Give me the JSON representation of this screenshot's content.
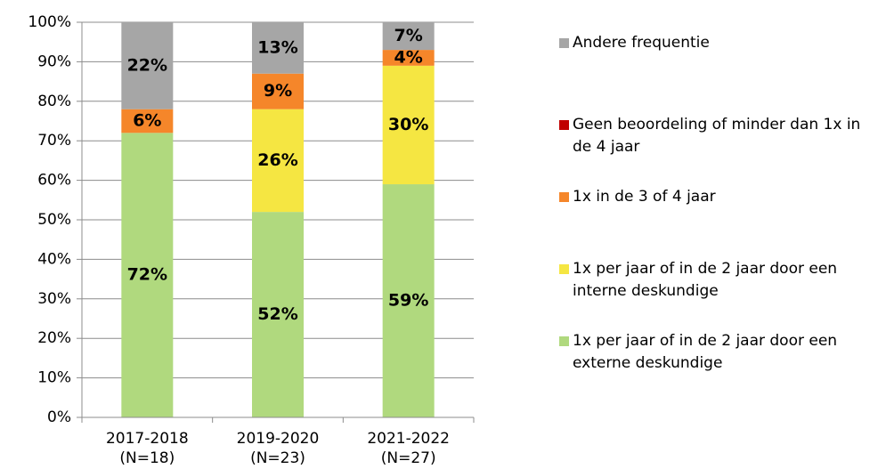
{
  "chart_data": {
    "type": "stacked_bar",
    "categories": [
      "2017-2018",
      "2019-2020",
      "2021-2022"
    ],
    "category_sublabels": [
      "(N=18)",
      "(N=23)",
      "(N=27)"
    ],
    "series": [
      {
        "name": "1x per jaar of in de 2 jaar door een externe deskundige",
        "color": "#b0d97e",
        "values": [
          72,
          52,
          59
        ],
        "value_labels": [
          "72%",
          "52%",
          "59%"
        ]
      },
      {
        "name": "1x per jaar of in de 2 jaar door een interne deskundige",
        "color": "#f5e642",
        "values": [
          0,
          26,
          30
        ],
        "value_labels": [
          null,
          "26%",
          "30%"
        ]
      },
      {
        "name": "1x in de 3 of 4 jaar",
        "color": "#f5862a",
        "values": [
          6,
          9,
          4
        ],
        "value_labels": [
          "6%",
          "9%",
          "4%"
        ]
      },
      {
        "name": "Geen beoordeling of minder dan 1x in de 4 jaar",
        "color": "#c00000",
        "values": [
          0,
          0,
          0
        ],
        "value_labels": [
          null,
          null,
          null
        ]
      },
      {
        "name": "Andere frequentie",
        "color": "#a6a6a6",
        "values": [
          22,
          13,
          7
        ],
        "value_labels": [
          "22%",
          "13%",
          "7%"
        ]
      }
    ],
    "ylim": [
      0,
      100
    ],
    "yticks": [
      {
        "value": 0,
        "label": "0%"
      },
      {
        "value": 10,
        "label": "10%"
      },
      {
        "value": 20,
        "label": "20%"
      },
      {
        "value": 30,
        "label": "30%"
      },
      {
        "value": 40,
        "label": "40%"
      },
      {
        "value": 50,
        "label": "50%"
      },
      {
        "value": 60,
        "label": "60%"
      },
      {
        "value": 70,
        "label": "70%"
      },
      {
        "value": 80,
        "label": "80%"
      },
      {
        "value": 90,
        "label": "90%"
      },
      {
        "value": 100,
        "label": "100%"
      }
    ],
    "grid": true,
    "legend": "right"
  }
}
